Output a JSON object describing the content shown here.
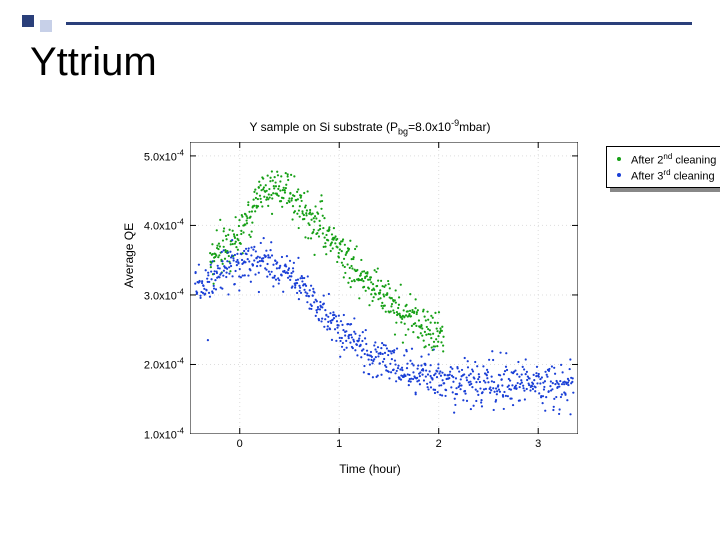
{
  "accent": {
    "color_dark": "#2a3f7a",
    "color_light": "#c7d0e8",
    "line_color": "#2a3f7a"
  },
  "title": "Yttrium",
  "chart": {
    "type": "scatter",
    "title_html": "Y sample on Si substrate (P<sub>bg</sub>=8.0x10<sup>-9</sup>mbar)",
    "xlabel": "Time (hour)",
    "ylabel": "Average QE",
    "background_color": "#ffffff",
    "axis_color": "#000000",
    "grid_color": "#dddddd",
    "xlim": [
      -0.5,
      3.4
    ],
    "ylim": [
      0.0001,
      0.00052
    ],
    "xticks": [
      0,
      1,
      2,
      3
    ],
    "xtick_labels": [
      "0",
      "1",
      "2",
      "3"
    ],
    "yticks": [
      0.0001,
      0.0002,
      0.0003,
      0.0004,
      0.0005
    ],
    "ytick_labels_html": [
      "1.0x10<sup>-4</sup>",
      "2.0x10<sup>-4</sup>",
      "3.0x10<sup>-4</sup>",
      "4.0x10<sup>-4</sup>",
      "5.0x10<sup>-4</sup>"
    ],
    "marker_size": 2.2,
    "legend": {
      "items": [
        {
          "marker_color": "#16a016",
          "label_html": "After 2<sup>nd</sup> cleaning"
        },
        {
          "marker_color": "#1a3fd6",
          "label_html": "After 3<sup>rd</sup> cleaning"
        }
      ]
    },
    "series": [
      {
        "name": "After 2nd cleaning",
        "color": "#16a016",
        "n_points": 520,
        "x_range": [
          -0.3,
          2.05
        ],
        "trend": [
          {
            "x": -0.3,
            "y": 0.00035
          },
          {
            "x": 0.0,
            "y": 0.00039
          },
          {
            "x": 0.25,
            "y": 0.00045
          },
          {
            "x": 0.45,
            "y": 0.00045
          },
          {
            "x": 0.8,
            "y": 0.0004
          },
          {
            "x": 1.2,
            "y": 0.00033
          },
          {
            "x": 1.6,
            "y": 0.00028
          },
          {
            "x": 1.85,
            "y": 0.00025
          },
          {
            "x": 2.05,
            "y": 0.000235
          }
        ],
        "scatter_sigma": 1.6e-05
      },
      {
        "name": "After 3rd cleaning",
        "color": "#1a3fd6",
        "n_points": 780,
        "x_range": [
          -0.45,
          3.35
        ],
        "trend": [
          {
            "x": -0.45,
            "y": 0.00031
          },
          {
            "x": -0.1,
            "y": 0.00034
          },
          {
            "x": 0.2,
            "y": 0.00035
          },
          {
            "x": 0.5,
            "y": 0.00033
          },
          {
            "x": 0.9,
            "y": 0.00027
          },
          {
            "x": 1.3,
            "y": 0.000215
          },
          {
            "x": 1.7,
            "y": 0.00019
          },
          {
            "x": 2.1,
            "y": 0.00018
          },
          {
            "x": 2.5,
            "y": 0.000172
          },
          {
            "x": 3.0,
            "y": 0.00017
          },
          {
            "x": 3.35,
            "y": 0.000168
          }
        ],
        "scatter_sigma": 1.5e-05
      }
    ]
  }
}
